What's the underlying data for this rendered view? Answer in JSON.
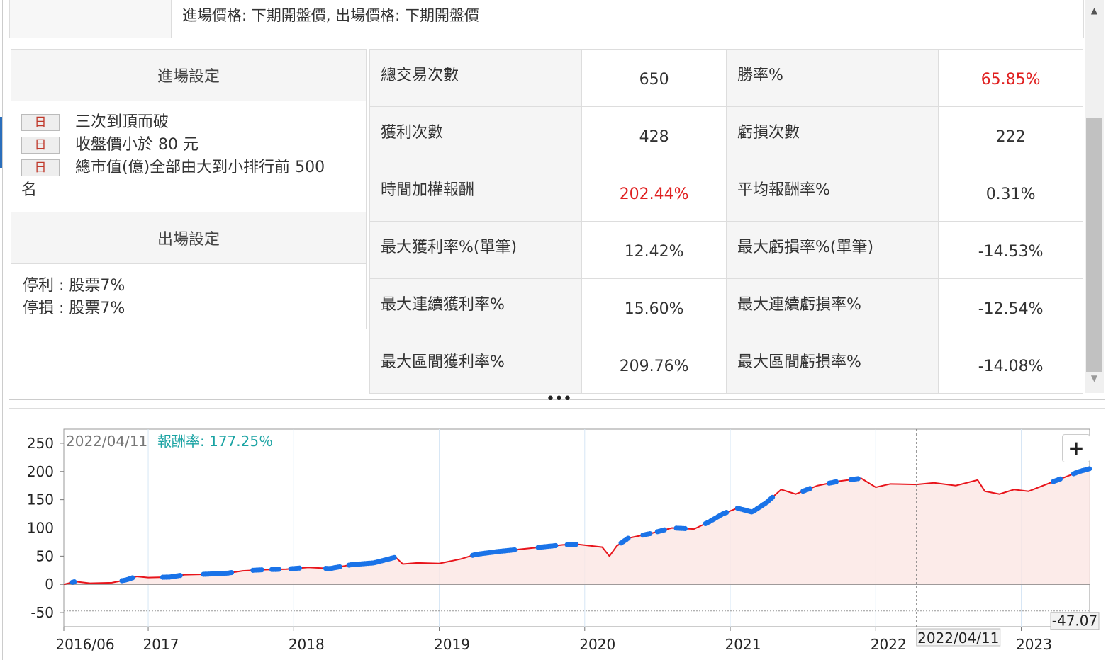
{
  "top_strip": {
    "text": "進場價格: 下期開盤價, 出場價格: 下期開盤價"
  },
  "settings": {
    "entry_title": "進場設定",
    "conditions": [
      {
        "tag": "日",
        "text": "三次到頂而破"
      },
      {
        "tag": "日",
        "text": "收盤價小於 80 元"
      },
      {
        "tag": "日",
        "text": "總市值(億)全部由大到小排行前 500"
      }
    ],
    "condition_overflow": "名",
    "exit_title": "出場設定",
    "exit_lines": [
      "停利 : 股票7%",
      "停損 : 股票7%"
    ]
  },
  "stats": {
    "rows": [
      {
        "label1": "總交易次數",
        "value1": "650",
        "label2": "勝率%",
        "value2": "65.85%"
      },
      {
        "label1": "獲利次數",
        "value1": "428",
        "label2": "虧損次數",
        "value2": "222"
      },
      {
        "label1": "時間加權報酬",
        "value1": "202.44%",
        "label2": "平均報酬率%",
        "value2": "0.31%"
      },
      {
        "label1": "最大獲利率%(單筆)",
        "value1": "12.42%",
        "label2": "最大虧損率%(單筆)",
        "value2": "-14.53%"
      },
      {
        "label1": "最大連續獲利率%",
        "value1": "15.60%",
        "label2": "最大連續虧損率%",
        "value2": "-12.54%"
      },
      {
        "label1": "最大區間獲利率%",
        "value1": "209.76%",
        "label2": "最大區間虧損率%",
        "value2": "-14.08%"
      }
    ],
    "colors": {
      "highlight": "#e02020"
    }
  },
  "chart": {
    "crosshair_date": "2022/04/11",
    "tooltip_label": "報酬率:",
    "tooltip_value": "177.25％",
    "min_label": "-47.07",
    "plus_label": "+"
  },
  "chart_data": {
    "type": "line",
    "ylim": [
      -75,
      275
    ],
    "yticks": [
      250,
      200,
      150,
      100,
      50,
      0,
      -50
    ],
    "xticks": [
      {
        "label": "2016/06",
        "x": 2016.42
      },
      {
        "label": "2017",
        "x": 2017.0
      },
      {
        "label": "2018",
        "x": 2018.0
      },
      {
        "label": "2019",
        "x": 2019.0
      },
      {
        "label": "2020",
        "x": 2020.0
      },
      {
        "label": "2021",
        "x": 2021.0
      },
      {
        "label": "2022",
        "x": 2022.0
      },
      {
        "label": "2023",
        "x": 2023.0
      }
    ],
    "xlim": [
      2016.42,
      2023.47
    ],
    "crosshair_x": 2022.28,
    "reference_y": -47.07,
    "series": [
      {
        "color": "#e8141b",
        "points": [
          [
            2016.42,
            0
          ],
          [
            2016.5,
            5
          ],
          [
            2016.6,
            2
          ],
          [
            2016.75,
            3
          ],
          [
            2016.85,
            8
          ],
          [
            2016.92,
            14
          ],
          [
            2017.0,
            12
          ],
          [
            2017.15,
            13
          ],
          [
            2017.25,
            17
          ],
          [
            2017.4,
            18
          ],
          [
            2017.55,
            20
          ],
          [
            2017.65,
            24
          ],
          [
            2017.8,
            26
          ],
          [
            2017.95,
            27
          ],
          [
            2018.1,
            30
          ],
          [
            2018.25,
            28
          ],
          [
            2018.4,
            35
          ],
          [
            2018.55,
            38
          ],
          [
            2018.7,
            48
          ],
          [
            2018.75,
            36
          ],
          [
            2018.85,
            38
          ],
          [
            2019.0,
            37
          ],
          [
            2019.15,
            45
          ],
          [
            2019.25,
            53
          ],
          [
            2019.4,
            58
          ],
          [
            2019.55,
            62
          ],
          [
            2019.7,
            66
          ],
          [
            2019.85,
            70
          ],
          [
            2019.95,
            71
          ],
          [
            2020.05,
            68
          ],
          [
            2020.12,
            66
          ],
          [
            2020.17,
            50
          ],
          [
            2020.22,
            68
          ],
          [
            2020.3,
            82
          ],
          [
            2020.45,
            90
          ],
          [
            2020.6,
            100
          ],
          [
            2020.75,
            98
          ],
          [
            2020.85,
            110
          ],
          [
            2020.95,
            125
          ],
          [
            2021.05,
            135
          ],
          [
            2021.15,
            128
          ],
          [
            2021.25,
            145
          ],
          [
            2021.35,
            168
          ],
          [
            2021.45,
            160
          ],
          [
            2021.6,
            175
          ],
          [
            2021.75,
            183
          ],
          [
            2021.9,
            188
          ],
          [
            2022.0,
            172
          ],
          [
            2022.1,
            178
          ],
          [
            2022.28,
            177
          ],
          [
            2022.4,
            180
          ],
          [
            2022.55,
            175
          ],
          [
            2022.7,
            185
          ],
          [
            2022.75,
            165
          ],
          [
            2022.85,
            160
          ],
          [
            2022.95,
            168
          ],
          [
            2023.05,
            165
          ],
          [
            2023.2,
            180
          ],
          [
            2023.3,
            190
          ],
          [
            2023.4,
            200
          ],
          [
            2023.47,
            205
          ]
        ]
      }
    ],
    "markers": [
      {
        "color": "#1a73e8",
        "segments": [
          [
            2016.48,
            2016.5
          ],
          [
            2016.82,
            2016.9
          ],
          [
            2017.1,
            2017.22
          ],
          [
            2017.38,
            2017.58
          ],
          [
            2017.72,
            2017.78
          ],
          [
            2017.85,
            2017.9
          ],
          [
            2017.98,
            2018.05
          ],
          [
            2018.22,
            2018.32
          ],
          [
            2018.38,
            2018.7
          ],
          [
            2019.23,
            2019.52
          ],
          [
            2019.68,
            2019.8
          ],
          [
            2019.88,
            2019.95
          ],
          [
            2020.25,
            2020.3
          ],
          [
            2020.4,
            2020.45
          ],
          [
            2020.5,
            2020.55
          ],
          [
            2020.63,
            2020.7
          ],
          [
            2020.83,
            2020.98
          ],
          [
            2021.05,
            2021.3
          ],
          [
            2021.5,
            2021.55
          ],
          [
            2021.68,
            2021.73
          ],
          [
            2021.83,
            2021.88
          ],
          [
            2023.22,
            2023.27
          ],
          [
            2023.36,
            2023.47
          ]
        ]
      }
    ]
  }
}
